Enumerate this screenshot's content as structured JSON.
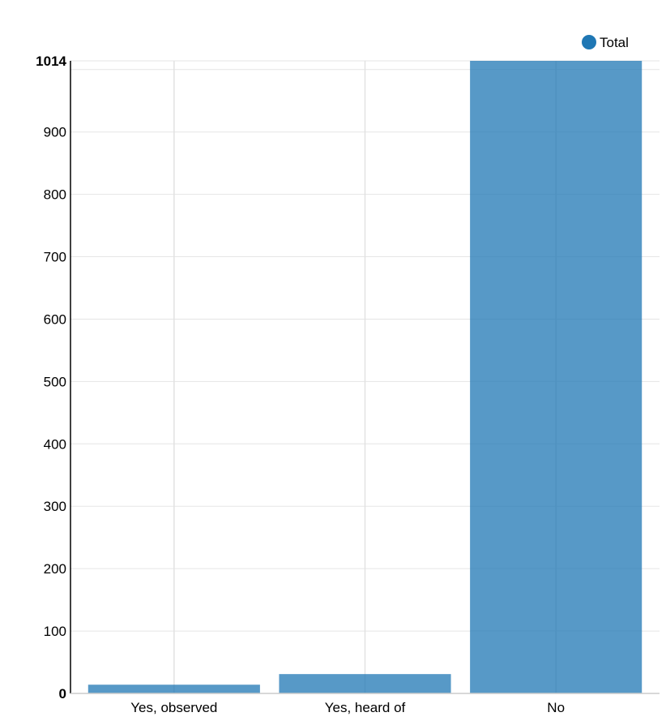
{
  "chart_data": {
    "type": "bar",
    "categories": [
      "Yes, observed",
      "Yes, heard of",
      "No"
    ],
    "series": [
      {
        "name": "Total",
        "values": [
          14,
          31,
          1014
        ],
        "color": "#1f77b4"
      }
    ],
    "y_ticks": [
      0,
      100,
      200,
      300,
      400,
      500,
      600,
      700,
      800,
      900,
      1014
    ],
    "ylim": [
      0,
      1014
    ],
    "grid": true,
    "legend_position": "top-right",
    "xlabel": "",
    "ylabel": ""
  }
}
